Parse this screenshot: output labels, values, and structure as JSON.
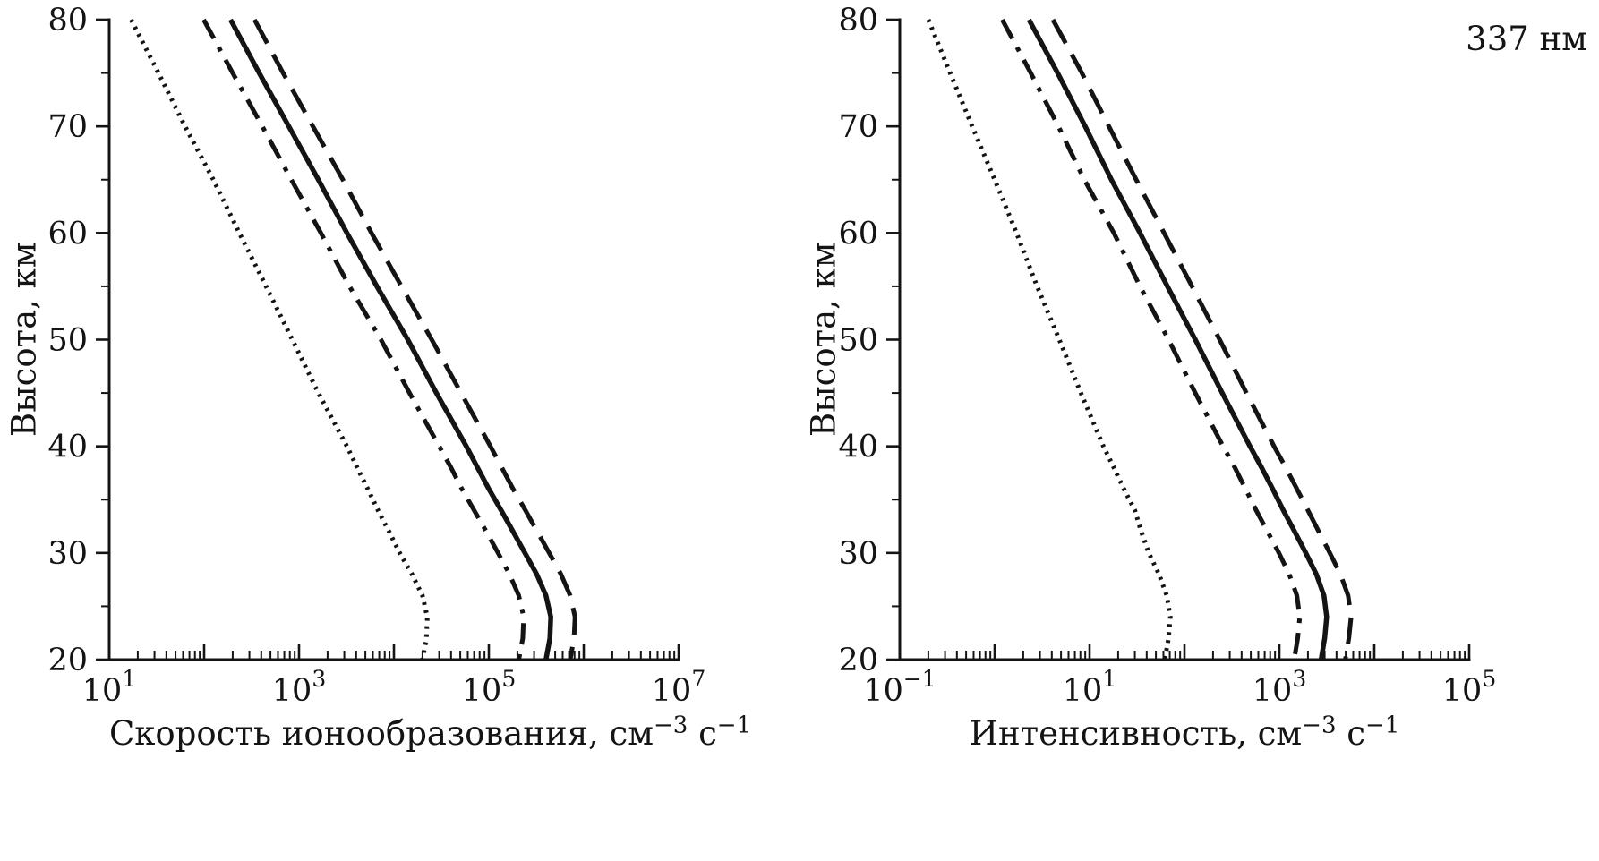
{
  "figure": {
    "background": "#ffffff",
    "line_color": "#141414"
  },
  "chart_data": [
    {
      "type": "line",
      "title": "",
      "xscale": "log",
      "xlabel_parts": [
        "Скорость ионообразования, см",
        "−3",
        " с",
        "−1"
      ],
      "ylabel": "Высота, км",
      "xlim_exp": [
        1,
        7
      ],
      "xtick_labeled_exps": [
        1,
        3,
        5,
        7
      ],
      "ylim": [
        20,
        80
      ],
      "yticks_major": [
        20,
        30,
        40,
        50,
        60,
        70,
        80
      ],
      "yticks_minor": [
        25,
        35,
        45,
        55,
        65,
        75
      ],
      "grid": "off",
      "legend": "off",
      "altitudes_km": [
        80,
        75,
        70,
        65,
        60,
        55,
        50,
        45,
        40,
        38,
        36,
        34,
        32,
        30,
        28,
        26,
        24,
        22,
        20
      ],
      "series": [
        {
          "name": "series-dotted",
          "style": "dotted",
          "values": [
            17,
            33,
            63,
            125,
            235,
            450,
            850,
            1600,
            3200,
            4100,
            5300,
            6800,
            8900,
            11500,
            15500,
            20000,
            22500,
            22000,
            20000
          ]
        },
        {
          "name": "series-dash-dot",
          "style": "dashdot",
          "values": [
            99,
            200,
            410,
            830,
            1700,
            3400,
            7300,
            14600,
            30000,
            40000,
            52000,
            70000,
            94000,
            125000,
            165000,
            207000,
            233000,
            228000,
            207000
          ]
        },
        {
          "name": "series-solid",
          "style": "solid",
          "values": [
            190,
            380,
            780,
            1600,
            3200,
            6600,
            14000,
            28000,
            58000,
            76000,
            100000,
            135000,
            180000,
            240000,
            320000,
            400000,
            450000,
            440000,
            400000
          ]
        },
        {
          "name": "series-dashed",
          "style": "dashed",
          "values": [
            340,
            680,
            1400,
            2900,
            5800,
            12000,
            25000,
            51000,
            104000,
            137000,
            180000,
            243000,
            324000,
            432000,
            576000,
            720000,
            810000,
            790000,
            720000
          ]
        }
      ]
    },
    {
      "type": "line",
      "title": "",
      "annotation": "337 нм",
      "xscale": "log",
      "xlabel_parts": [
        "Интенсивность, см",
        "−3",
        " с",
        "−1"
      ],
      "ylabel": "Высота, км",
      "xlim_exp": [
        -1,
        5
      ],
      "xtick_labeled_exps": [
        -1,
        1,
        3,
        5
      ],
      "ylim": [
        20,
        80
      ],
      "yticks_major": [
        20,
        30,
        40,
        50,
        60,
        70,
        80
      ],
      "yticks_minor": [
        25,
        35,
        45,
        55,
        65,
        75
      ],
      "grid": "off",
      "legend": "off",
      "altitudes_km": [
        80,
        75,
        70,
        65,
        60,
        55,
        50,
        45,
        40,
        38,
        36,
        34,
        32,
        30,
        28,
        26,
        24,
        22,
        20
      ],
      "series": [
        {
          "name": "series-dotted",
          "style": "dotted",
          "values": [
            0.2,
            0.34,
            0.58,
            1.0,
            1.7,
            2.8,
            4.8,
            8.1,
            14,
            18,
            23,
            30,
            35,
            42,
            54,
            65,
            71,
            68,
            62
          ]
        },
        {
          "name": "series-dash-dot",
          "style": "dashdot",
          "values": [
            1.2,
            2.4,
            4.7,
            8.8,
            18,
            34,
            68,
            130,
            255,
            340,
            440,
            570,
            750,
            990,
            1270,
            1530,
            1640,
            1560,
            1430
          ]
        },
        {
          "name": "series-solid",
          "style": "solid",
          "values": [
            2.3,
            4.6,
            9,
            17,
            34,
            66,
            130,
            250,
            490,
            650,
            850,
            1100,
            1450,
            1900,
            2450,
            2950,
            3150,
            3000,
            2750
          ]
        },
        {
          "name": "series-dashed",
          "style": "dashed",
          "values": [
            4.1,
            8.3,
            16,
            31,
            61,
            120,
            235,
            450,
            880,
            1170,
            1530,
            2000,
            2600,
            3400,
            4400,
            5300,
            5700,
            5400,
            4950
          ]
        }
      ]
    }
  ]
}
